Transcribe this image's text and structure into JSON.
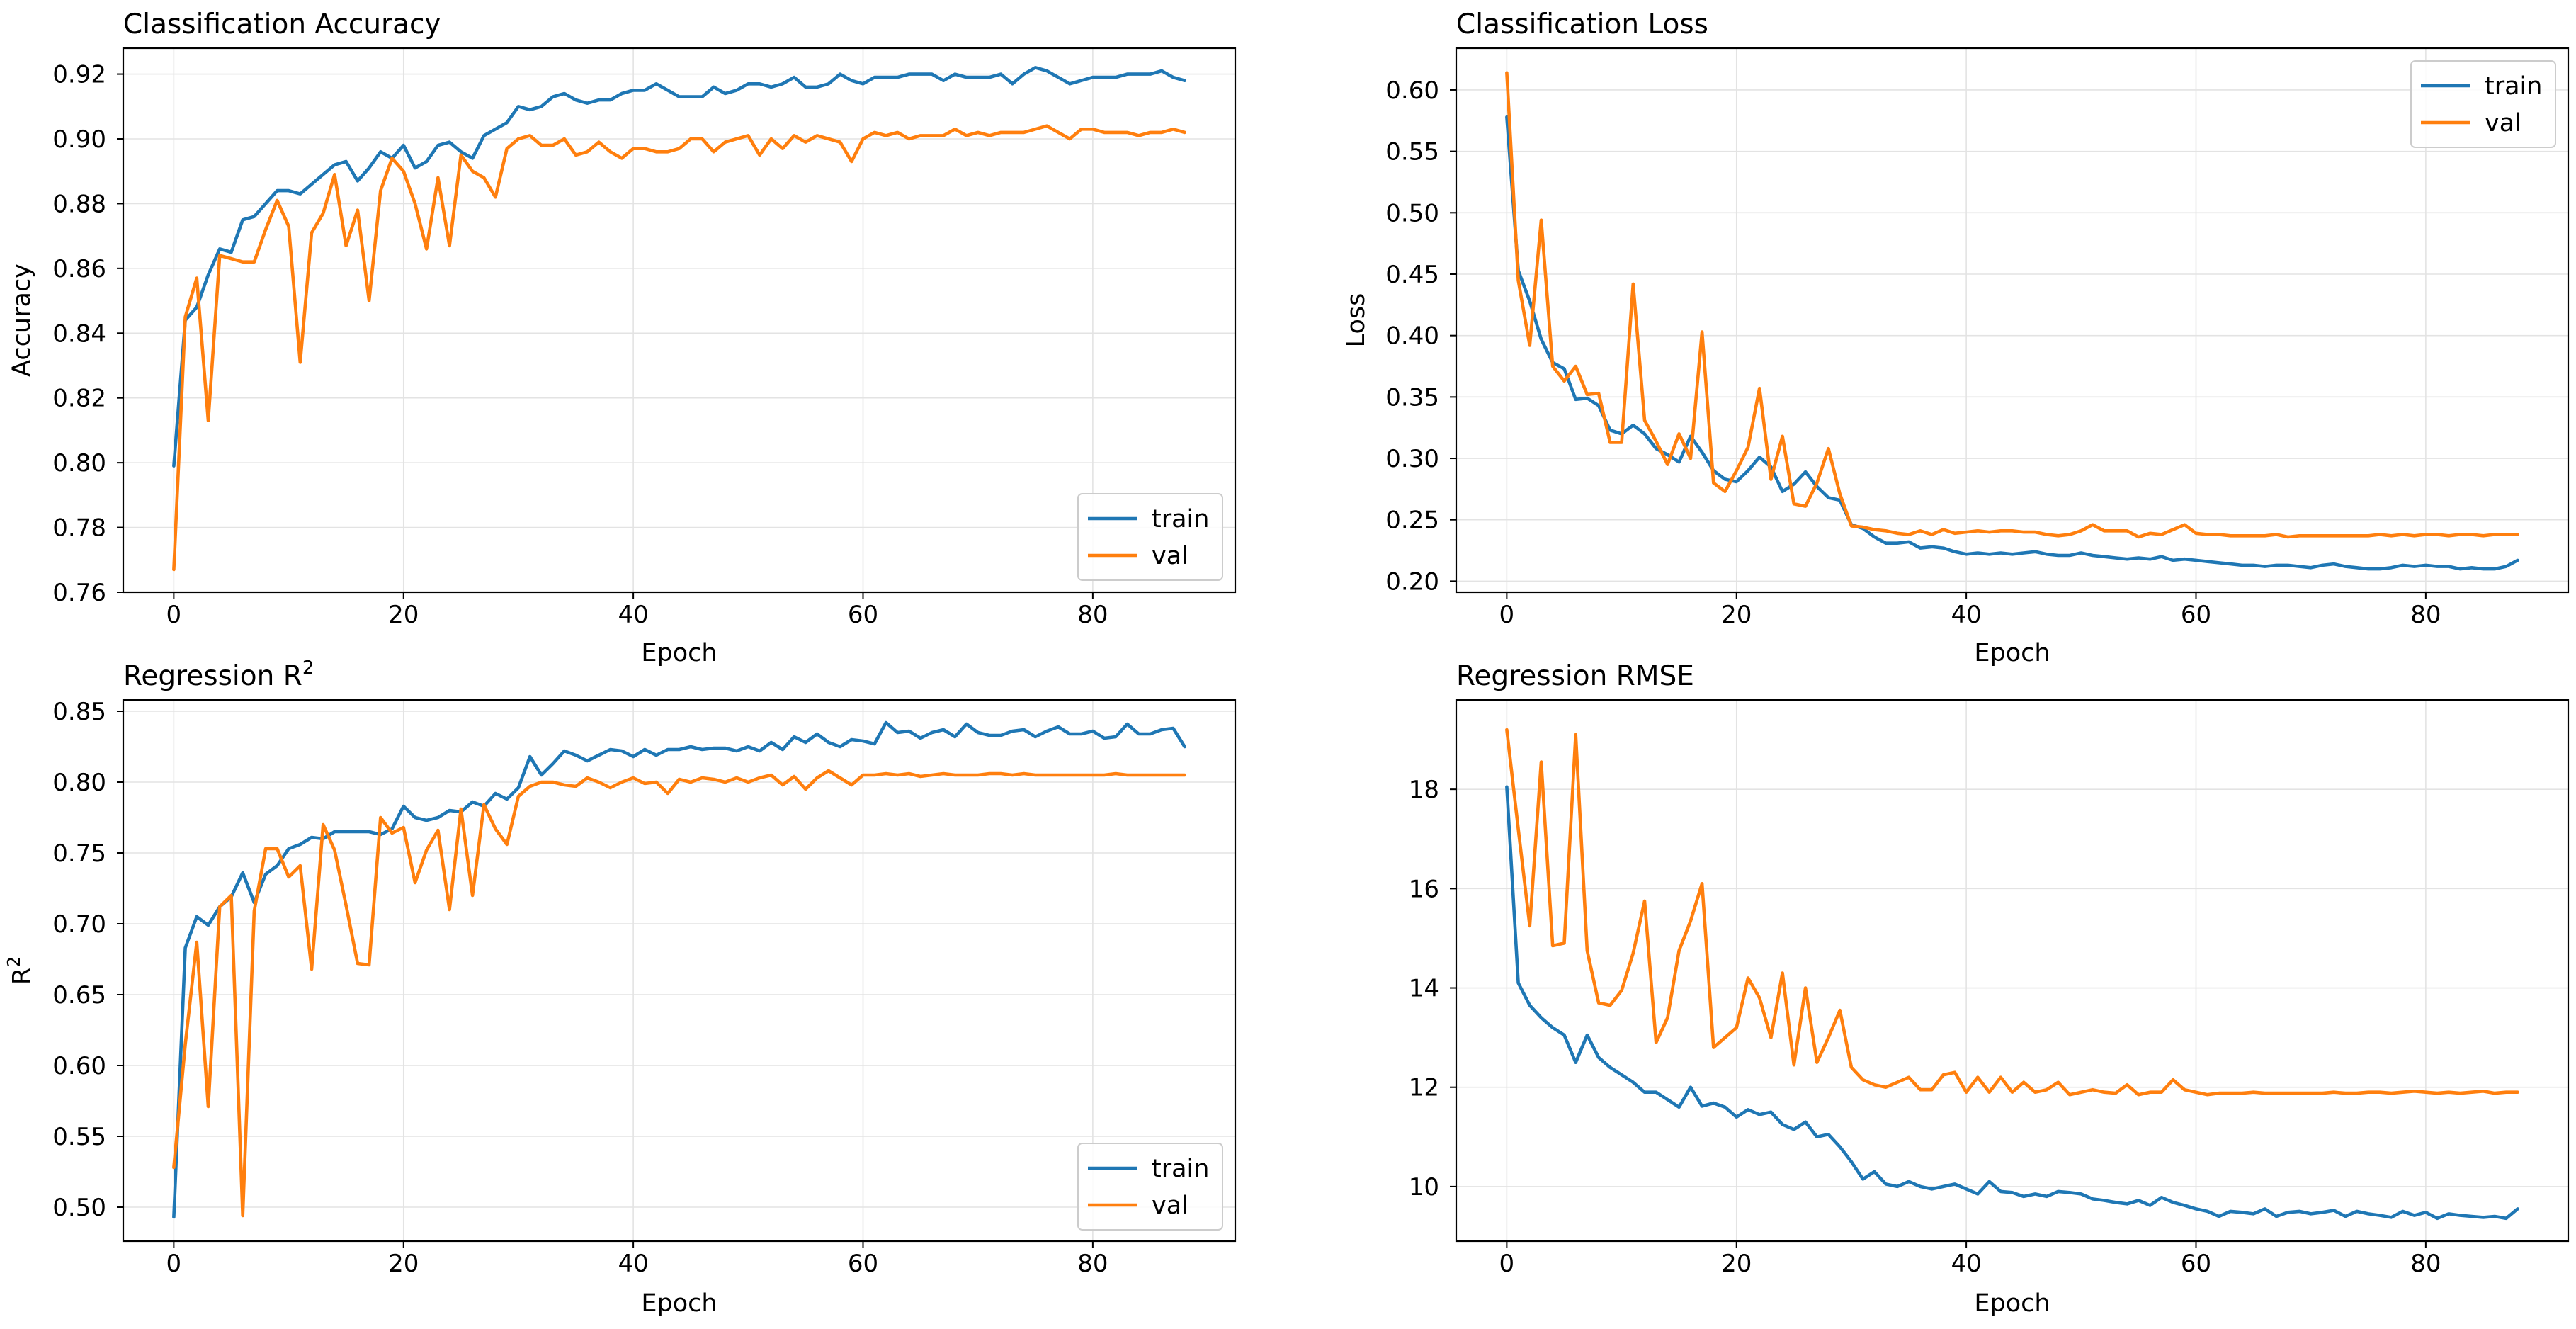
{
  "colors": {
    "train": "#1f77b4",
    "val": "#ff7f0e"
  },
  "chart_data": [
    {
      "id": "acc",
      "type": "line",
      "title": "Classification Accuracy",
      "title_sup": "",
      "xlabel": "Epoch",
      "ylabel": "Accuracy",
      "ylabel_sup": "",
      "xlim": [
        -4.4,
        92.4
      ],
      "ylim": [
        0.76,
        0.928
      ],
      "xticks": [
        0,
        20,
        40,
        60,
        80
      ],
      "xtick_labels": [
        "0",
        "20",
        "40",
        "60",
        "80"
      ],
      "yticks": [
        0.76,
        0.78,
        0.8,
        0.82,
        0.84,
        0.86,
        0.88,
        0.9,
        0.92
      ],
      "ytick_labels": [
        "0.76",
        "0.78",
        "0.80",
        "0.82",
        "0.84",
        "0.86",
        "0.88",
        "0.90",
        "0.92"
      ],
      "legend": {
        "position": "lower-right",
        "labels": [
          "train",
          "val"
        ]
      },
      "series": [
        {
          "name": "train",
          "values": [
            0.799,
            0.844,
            0.848,
            0.858,
            0.866,
            0.865,
            0.875,
            0.876,
            0.88,
            0.884,
            0.884,
            0.883,
            0.886,
            0.889,
            0.892,
            0.893,
            0.887,
            0.891,
            0.896,
            0.894,
            0.898,
            0.891,
            0.893,
            0.898,
            0.899,
            0.896,
            0.894,
            0.901,
            0.903,
            0.905,
            0.91,
            0.909,
            0.91,
            0.913,
            0.914,
            0.912,
            0.911,
            0.912,
            0.912,
            0.914,
            0.915,
            0.915,
            0.917,
            0.915,
            0.913,
            0.913,
            0.913,
            0.916,
            0.914,
            0.915,
            0.917,
            0.917,
            0.916,
            0.917,
            0.919,
            0.916,
            0.916,
            0.917,
            0.92,
            0.918,
            0.917,
            0.919,
            0.919,
            0.919,
            0.92,
            0.92,
            0.92,
            0.918,
            0.92,
            0.919,
            0.919,
            0.919,
            0.92,
            0.917,
            0.92,
            0.922,
            0.921,
            0.919,
            0.917,
            0.918,
            0.919,
            0.919,
            0.919,
            0.92,
            0.92,
            0.92,
            0.921,
            0.919,
            0.918
          ]
        },
        {
          "name": "val",
          "values": [
            0.767,
            0.845,
            0.857,
            0.813,
            0.864,
            0.863,
            0.862,
            0.862,
            0.872,
            0.881,
            0.873,
            0.831,
            0.871,
            0.877,
            0.889,
            0.867,
            0.878,
            0.85,
            0.884,
            0.894,
            0.89,
            0.88,
            0.866,
            0.888,
            0.867,
            0.895,
            0.89,
            0.888,
            0.882,
            0.897,
            0.9,
            0.901,
            0.898,
            0.898,
            0.9,
            0.895,
            0.896,
            0.899,
            0.896,
            0.894,
            0.897,
            0.897,
            0.896,
            0.896,
            0.897,
            0.9,
            0.9,
            0.896,
            0.899,
            0.9,
            0.901,
            0.895,
            0.9,
            0.897,
            0.901,
            0.899,
            0.901,
            0.9,
            0.899,
            0.893,
            0.9,
            0.902,
            0.901,
            0.902,
            0.9,
            0.901,
            0.901,
            0.901,
            0.903,
            0.901,
            0.902,
            0.901,
            0.902,
            0.902,
            0.902,
            0.903,
            0.904,
            0.902,
            0.9,
            0.903,
            0.903,
            0.902,
            0.902,
            0.902,
            0.901,
            0.902,
            0.902,
            0.903,
            0.902
          ]
        }
      ]
    },
    {
      "id": "loss",
      "type": "line",
      "title": "Classification Loss",
      "title_sup": "",
      "xlabel": "Epoch",
      "ylabel": "Loss",
      "ylabel_sup": "",
      "xlim": [
        -4.4,
        92.4
      ],
      "ylim": [
        0.191,
        0.634
      ],
      "xticks": [
        0,
        20,
        40,
        60,
        80
      ],
      "xtick_labels": [
        "0",
        "20",
        "40",
        "60",
        "80"
      ],
      "yticks": [
        0.2,
        0.25,
        0.3,
        0.35,
        0.4,
        0.45,
        0.5,
        0.55,
        0.6
      ],
      "ytick_labels": [
        "0.20",
        "0.25",
        "0.30",
        "0.35",
        "0.40",
        "0.45",
        "0.50",
        "0.55",
        "0.60"
      ],
      "legend": {
        "position": "upper-right",
        "labels": [
          "train",
          "val"
        ]
      },
      "series": [
        {
          "name": "train",
          "values": [
            0.578,
            0.453,
            0.428,
            0.397,
            0.378,
            0.373,
            0.348,
            0.349,
            0.343,
            0.323,
            0.32,
            0.327,
            0.32,
            0.308,
            0.303,
            0.297,
            0.318,
            0.305,
            0.29,
            0.283,
            0.281,
            0.29,
            0.301,
            0.293,
            0.273,
            0.279,
            0.289,
            0.277,
            0.268,
            0.266,
            0.246,
            0.243,
            0.236,
            0.231,
            0.231,
            0.232,
            0.227,
            0.228,
            0.227,
            0.224,
            0.222,
            0.223,
            0.222,
            0.223,
            0.222,
            0.223,
            0.224,
            0.222,
            0.221,
            0.221,
            0.223,
            0.221,
            0.22,
            0.219,
            0.218,
            0.219,
            0.218,
            0.22,
            0.217,
            0.218,
            0.217,
            0.216,
            0.215,
            0.214,
            0.213,
            0.213,
            0.212,
            0.213,
            0.213,
            0.212,
            0.211,
            0.213,
            0.214,
            0.212,
            0.211,
            0.21,
            0.21,
            0.211,
            0.213,
            0.212,
            0.213,
            0.212,
            0.212,
            0.21,
            0.211,
            0.21,
            0.21,
            0.212,
            0.217
          ]
        },
        {
          "name": "val",
          "values": [
            0.614,
            0.445,
            0.392,
            0.494,
            0.375,
            0.363,
            0.375,
            0.352,
            0.353,
            0.313,
            0.313,
            0.442,
            0.331,
            0.314,
            0.295,
            0.32,
            0.3,
            0.403,
            0.28,
            0.273,
            0.29,
            0.309,
            0.357,
            0.283,
            0.318,
            0.263,
            0.261,
            0.28,
            0.308,
            0.271,
            0.245,
            0.244,
            0.242,
            0.241,
            0.239,
            0.238,
            0.241,
            0.238,
            0.242,
            0.239,
            0.24,
            0.241,
            0.24,
            0.241,
            0.241,
            0.24,
            0.24,
            0.238,
            0.237,
            0.238,
            0.241,
            0.246,
            0.241,
            0.241,
            0.241,
            0.236,
            0.239,
            0.238,
            0.242,
            0.246,
            0.239,
            0.238,
            0.238,
            0.237,
            0.237,
            0.237,
            0.237,
            0.238,
            0.236,
            0.237,
            0.237,
            0.237,
            0.237,
            0.237,
            0.237,
            0.237,
            0.238,
            0.237,
            0.238,
            0.237,
            0.238,
            0.238,
            0.237,
            0.238,
            0.238,
            0.237,
            0.238,
            0.238,
            0.238
          ]
        }
      ]
    },
    {
      "id": "r2",
      "type": "line",
      "title": "Regression R",
      "title_sup": "2",
      "xlabel": "Epoch",
      "ylabel": "R",
      "ylabel_sup": "2",
      "xlim": [
        -4.4,
        92.4
      ],
      "ylim": [
        0.476,
        0.858
      ],
      "xticks": [
        0,
        20,
        40,
        60,
        80
      ],
      "xtick_labels": [
        "0",
        "20",
        "40",
        "60",
        "80"
      ],
      "yticks": [
        0.5,
        0.55,
        0.6,
        0.65,
        0.7,
        0.75,
        0.8,
        0.85
      ],
      "ytick_labels": [
        "0.50",
        "0.55",
        "0.60",
        "0.65",
        "0.70",
        "0.75",
        "0.80",
        "0.85"
      ],
      "legend": {
        "position": "lower-right",
        "labels": [
          "train",
          "val"
        ]
      },
      "series": [
        {
          "name": "train",
          "values": [
            0.493,
            0.683,
            0.705,
            0.699,
            0.712,
            0.719,
            0.736,
            0.715,
            0.735,
            0.741,
            0.753,
            0.756,
            0.761,
            0.76,
            0.765,
            0.765,
            0.765,
            0.765,
            0.763,
            0.767,
            0.783,
            0.775,
            0.773,
            0.775,
            0.78,
            0.779,
            0.786,
            0.783,
            0.792,
            0.788,
            0.796,
            0.818,
            0.805,
            0.813,
            0.822,
            0.819,
            0.815,
            0.819,
            0.823,
            0.822,
            0.818,
            0.823,
            0.819,
            0.823,
            0.823,
            0.825,
            0.823,
            0.824,
            0.824,
            0.822,
            0.825,
            0.822,
            0.828,
            0.823,
            0.832,
            0.828,
            0.834,
            0.828,
            0.825,
            0.83,
            0.829,
            0.827,
            0.842,
            0.835,
            0.836,
            0.831,
            0.835,
            0.837,
            0.832,
            0.841,
            0.835,
            0.833,
            0.833,
            0.836,
            0.837,
            0.832,
            0.836,
            0.839,
            0.834,
            0.834,
            0.836,
            0.831,
            0.832,
            0.841,
            0.834,
            0.834,
            0.837,
            0.838,
            0.825
          ]
        },
        {
          "name": "val",
          "values": [
            0.528,
            0.615,
            0.687,
            0.571,
            0.712,
            0.72,
            0.494,
            0.709,
            0.753,
            0.753,
            0.733,
            0.741,
            0.668,
            0.77,
            0.752,
            0.713,
            0.672,
            0.671,
            0.775,
            0.764,
            0.768,
            0.729,
            0.752,
            0.766,
            0.71,
            0.781,
            0.72,
            0.784,
            0.767,
            0.756,
            0.79,
            0.797,
            0.8,
            0.8,
            0.798,
            0.797,
            0.803,
            0.8,
            0.796,
            0.8,
            0.803,
            0.799,
            0.8,
            0.792,
            0.802,
            0.8,
            0.803,
            0.802,
            0.8,
            0.803,
            0.8,
            0.803,
            0.805,
            0.798,
            0.804,
            0.795,
            0.803,
            0.808,
            0.803,
            0.798,
            0.805,
            0.805,
            0.806,
            0.805,
            0.806,
            0.804,
            0.805,
            0.806,
            0.805,
            0.805,
            0.805,
            0.806,
            0.806,
            0.805,
            0.806,
            0.805,
            0.805,
            0.805,
            0.805,
            0.805,
            0.805,
            0.805,
            0.806,
            0.805,
            0.805,
            0.805,
            0.805,
            0.805,
            0.805
          ]
        }
      ]
    },
    {
      "id": "rmse",
      "type": "line",
      "title": "Regression RMSE",
      "title_sup": "",
      "xlabel": "Epoch",
      "ylabel": "",
      "ylabel_sup": "",
      "xlim": [
        -4.4,
        92.4
      ],
      "ylim": [
        8.9,
        19.8
      ],
      "xticks": [
        0,
        20,
        40,
        60,
        80
      ],
      "xtick_labels": [
        "0",
        "20",
        "40",
        "60",
        "80"
      ],
      "yticks": [
        10,
        12,
        14,
        16,
        18
      ],
      "ytick_labels": [
        "10",
        "12",
        "14",
        "16",
        "18"
      ],
      "legend": {
        "position": "none",
        "labels": []
      },
      "series": [
        {
          "name": "train",
          "values": [
            18.05,
            14.1,
            13.65,
            13.4,
            13.2,
            13.05,
            12.5,
            13.05,
            12.6,
            12.4,
            12.25,
            12.1,
            11.9,
            11.9,
            11.75,
            11.6,
            12.0,
            11.62,
            11.68,
            11.6,
            11.4,
            11.55,
            11.45,
            11.5,
            11.25,
            11.15,
            11.3,
            11.0,
            11.05,
            10.8,
            10.5,
            10.15,
            10.3,
            10.05,
            10.0,
            10.1,
            10.0,
            9.95,
            10.0,
            10.05,
            9.95,
            9.85,
            10.1,
            9.9,
            9.88,
            9.8,
            9.85,
            9.8,
            9.9,
            9.88,
            9.85,
            9.75,
            9.72,
            9.68,
            9.65,
            9.72,
            9.62,
            9.78,
            9.68,
            9.62,
            9.55,
            9.5,
            9.4,
            9.5,
            9.48,
            9.45,
            9.55,
            9.4,
            9.48,
            9.5,
            9.45,
            9.48,
            9.52,
            9.4,
            9.5,
            9.45,
            9.42,
            9.38,
            9.5,
            9.42,
            9.48,
            9.36,
            9.45,
            9.42,
            9.4,
            9.38,
            9.4,
            9.36,
            9.55
          ]
        },
        {
          "name": "val",
          "values": [
            19.2,
            17.2,
            15.25,
            18.55,
            14.85,
            14.9,
            19.1,
            14.75,
            13.7,
            13.65,
            13.95,
            14.7,
            15.75,
            12.9,
            13.4,
            14.75,
            15.35,
            16.1,
            12.8,
            13.0,
            13.2,
            14.2,
            13.8,
            13.0,
            14.3,
            12.45,
            14.0,
            12.5,
            13.0,
            13.55,
            12.4,
            12.15,
            12.05,
            12.0,
            12.1,
            12.2,
            11.95,
            11.95,
            12.25,
            12.3,
            11.9,
            12.2,
            11.9,
            12.2,
            11.9,
            12.1,
            11.9,
            11.95,
            12.1,
            11.85,
            11.9,
            11.95,
            11.9,
            11.88,
            12.05,
            11.85,
            11.9,
            11.9,
            12.15,
            11.95,
            11.9,
            11.85,
            11.88,
            11.88,
            11.88,
            11.9,
            11.88,
            11.88,
            11.88,
            11.88,
            11.88,
            11.88,
            11.9,
            11.88,
            11.88,
            11.9,
            11.9,
            11.88,
            11.9,
            11.92,
            11.9,
            11.88,
            11.9,
            11.88,
            11.9,
            11.92,
            11.88,
            11.9,
            11.9
          ]
        }
      ]
    }
  ]
}
